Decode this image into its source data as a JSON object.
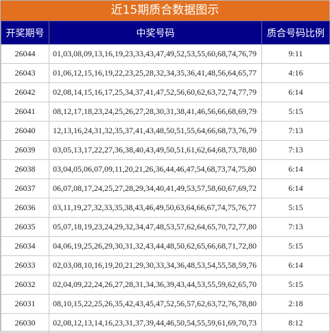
{
  "title": "近15期质合数据图示",
  "headers": [
    "开奖期号",
    "中奖号码",
    "质合号码比例"
  ],
  "rows": [
    {
      "period": "26044",
      "numbers": "01,03,08,09,13,16,19,23,33,43,47,49,52,53,55,60,68,74,76,79",
      "ratio": "9:11"
    },
    {
      "period": "26043",
      "numbers": "01,06,12,15,16,19,22,23,25,28,32,34,35,36,41,48,56,64,65,77",
      "ratio": "4:16"
    },
    {
      "period": "26042",
      "numbers": "02,08,14,15,16,17,25,34,37,41,47,52,56,60,62,63,72,74,77,79",
      "ratio": "6:14"
    },
    {
      "period": "26041",
      "numbers": "08,12,17,18,23,24,25,26,27,28,30,31,38,41,46,56,66,68,69,79",
      "ratio": "5:15"
    },
    {
      "period": "26040",
      "numbers": "12,13,16,24,31,32,35,37,41,43,48,50,51,55,64,66,68,73,76,79",
      "ratio": "7:13"
    },
    {
      "period": "26039",
      "numbers": "03,05,13,17,22,27,36,38,40,43,49,50,51,61,62,64,68,73,78,80",
      "ratio": "7:13"
    },
    {
      "period": "26038",
      "numbers": "03,04,05,06,07,09,11,20,21,26,36,44,46,47,54,68,73,74,75,80",
      "ratio": "6:14"
    },
    {
      "period": "26037",
      "numbers": "06,07,08,17,24,25,27,28,29,34,40,41,49,53,57,58,60,67,69,72",
      "ratio": "6:14"
    },
    {
      "period": "26036",
      "numbers": "03,11,19,27,32,33,35,38,43,46,49,50,63,64,66,67,74,75,76,77",
      "ratio": "5:15"
    },
    {
      "period": "26035",
      "numbers": "05,07,18,19,23,24,29,32,34,47,48,53,57,62,64,65,70,72,77,80",
      "ratio": "7:13"
    },
    {
      "period": "26034",
      "numbers": "04,06,19,25,26,29,30,31,32,43,44,48,50,62,65,66,68,71,72,80",
      "ratio": "5:15"
    },
    {
      "period": "26033",
      "numbers": "02,03,08,10,16,19,20,21,29,30,33,34,36,48,53,54,55,58,59,76",
      "ratio": "6:14"
    },
    {
      "period": "26032",
      "numbers": "02,04,09,22,24,26,27,28,31,34,36,39,43,44,53,55,59,62,65,70",
      "ratio": "5:15"
    },
    {
      "period": "26031",
      "numbers": "08,10,15,22,25,26,35,42,43,45,47,52,56,57,62,63,72,76,78,80",
      "ratio": "2:18"
    },
    {
      "period": "26030",
      "numbers": "02,08,12,13,14,16,23,31,37,39,44,46,50,54,55,59,61,69,70,73",
      "ratio": "8:12"
    }
  ]
}
